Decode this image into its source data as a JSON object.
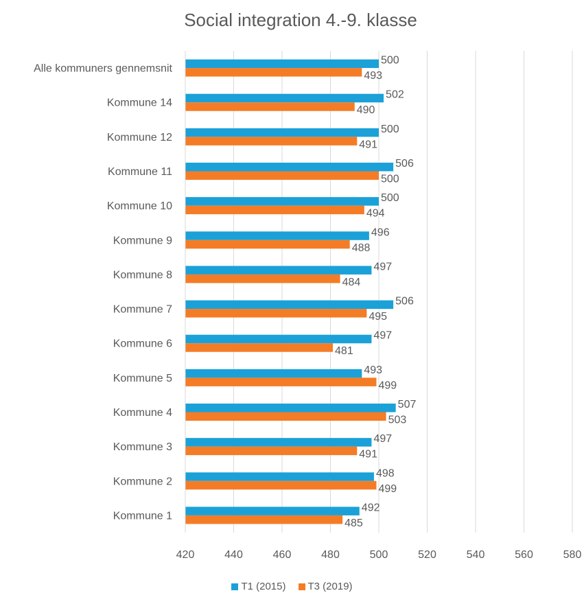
{
  "chart_data": {
    "type": "bar",
    "orientation": "horizontal",
    "title": "Social integration 4.-9. klasse",
    "categories": [
      "Alle kommuners gennemsnit",
      "Kommune 14",
      "Kommune 12",
      "Kommune 11",
      "Kommune 10",
      "Kommune 9",
      "Kommune 8",
      "Kommune 7",
      "Kommune 6",
      "Kommune 5",
      "Kommune 4",
      "Kommune 3",
      "Kommune 2",
      "Kommune 1"
    ],
    "series": [
      {
        "name": "T1 (2015)",
        "color": "#1BA1D8",
        "values": [
          500,
          502,
          500,
          506,
          500,
          496,
          497,
          506,
          497,
          493,
          507,
          497,
          498,
          492
        ]
      },
      {
        "name": "T3 (2019)",
        "color": "#F47C26",
        "values": [
          493,
          490,
          491,
          500,
          494,
          488,
          484,
          495,
          481,
          499,
          503,
          491,
          499,
          485
        ]
      }
    ],
    "xlim": [
      420,
      580
    ],
    "xticks": [
      "420",
      "440",
      "460",
      "480",
      "500",
      "520",
      "540",
      "560",
      "580"
    ],
    "grid": true,
    "legend_position": "bottom"
  }
}
